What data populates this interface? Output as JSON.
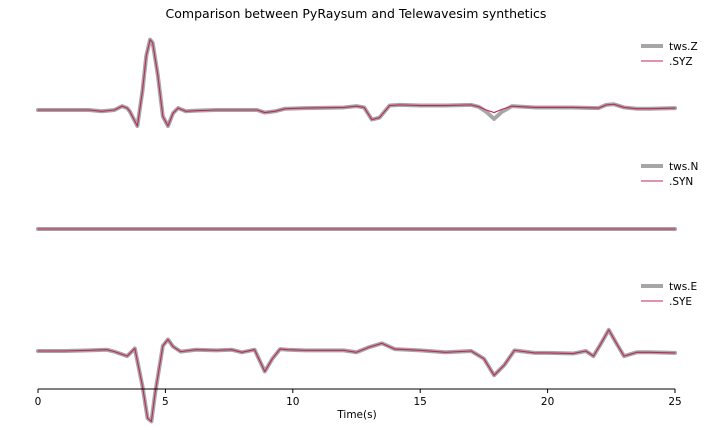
{
  "chart_data": {
    "type": "line",
    "title": "Comparison between PyRaysum and Telewavesim synthetics",
    "xlabel": "Time(s)",
    "xlim": [
      0,
      25
    ],
    "xticks": [
      0,
      5,
      10,
      15,
      20,
      25
    ],
    "grid": false,
    "legend_placement": "upper-right of each panel",
    "colors": {
      "reference": "#a6a6a6",
      "synthetic": "#c0285a"
    },
    "panels": [
      {
        "legend": [
          "tws.Z",
          ".SYZ"
        ],
        "ylim": [
          -1.2,
          1.2
        ],
        "series": [
          {
            "name": "tws.Z",
            "x": [
              0,
              1,
              2,
              2.5,
              3,
              3.3,
              3.5,
              3.6,
              3.9,
              4.1,
              4.25,
              4.4,
              4.5,
              4.7,
              4.9,
              5.1,
              5.3,
              5.5,
              5.8,
              6.2,
              7,
              8,
              8.6,
              8.9,
              9.3,
              9.7,
              10.5,
              12,
              12.5,
              12.8,
              13.1,
              13.4,
              13.8,
              14.2,
              15,
              16,
              17,
              17.3,
              17.6,
              17.9,
              18.2,
              18.6,
              19.5,
              20,
              21,
              22,
              22.3,
              22.6,
              23,
              23.5,
              24,
              25
            ],
            "y": [
              0,
              0,
              0,
              -0.02,
              0,
              0.06,
              0.03,
              -0.02,
              -0.25,
              0.3,
              0.85,
              1.1,
              1.05,
              0.55,
              -0.1,
              -0.25,
              -0.05,
              0.03,
              -0.02,
              -0.01,
              0,
              0,
              0,
              -0.04,
              -0.02,
              0.02,
              0.03,
              0.04,
              0.06,
              0.04,
              -0.15,
              -0.12,
              0.07,
              0.08,
              0.07,
              0.07,
              0.08,
              0.05,
              -0.03,
              -0.14,
              -0.03,
              0.06,
              0.04,
              0.04,
              0.04,
              0.03,
              0.08,
              0.09,
              0.04,
              0.02,
              0.02,
              0.03
            ]
          },
          {
            "name": ".SYZ",
            "x": [
              0,
              1,
              2,
              2.5,
              3,
              3.3,
              3.5,
              3.6,
              3.9,
              4.1,
              4.25,
              4.4,
              4.5,
              4.7,
              4.9,
              5.1,
              5.3,
              5.5,
              5.8,
              6.2,
              7,
              8,
              8.6,
              8.9,
              9.3,
              9.7,
              10.5,
              12,
              12.5,
              12.8,
              13.1,
              13.4,
              13.8,
              14.2,
              15,
              16,
              17,
              17.3,
              17.6,
              17.9,
              18.2,
              18.6,
              19.5,
              20,
              21,
              22,
              22.3,
              22.6,
              23,
              23.5,
              24,
              25
            ],
            "y": [
              0,
              0,
              0,
              -0.02,
              0,
              0.06,
              0.03,
              -0.02,
              -0.25,
              0.3,
              0.85,
              1.1,
              1.05,
              0.55,
              -0.1,
              -0.25,
              -0.05,
              0.03,
              -0.02,
              -0.01,
              0,
              0,
              0,
              -0.04,
              -0.02,
              0.02,
              0.03,
              0.04,
              0.06,
              0.04,
              -0.15,
              -0.12,
              0.07,
              0.08,
              0.07,
              0.07,
              0.08,
              0.05,
              0.0,
              -0.04,
              0.01,
              0.06,
              0.04,
              0.04,
              0.04,
              0.03,
              0.08,
              0.09,
              0.04,
              0.02,
              0.02,
              0.03
            ]
          }
        ]
      },
      {
        "legend": [
          "tws.N",
          ".SYN"
        ],
        "ylim": [
          -1.2,
          1.2
        ],
        "series": [
          {
            "name": "tws.N",
            "x": [
              0,
              25
            ],
            "y": [
              0,
              0
            ]
          },
          {
            "name": ".SYN",
            "x": [
              0,
              25
            ],
            "y": [
              0,
              0
            ]
          }
        ]
      },
      {
        "legend": [
          "tws.E",
          ".SYE"
        ],
        "ylim": [
          -1.2,
          1.2
        ],
        "series": [
          {
            "name": "tws.E",
            "x": [
              0,
              1,
              2,
              2.7,
              3,
              3.5,
              3.8,
              4.1,
              4.3,
              4.45,
              4.6,
              4.9,
              5.1,
              5.3,
              5.6,
              6.2,
              7,
              7.6,
              8,
              8.5,
              8.9,
              9.2,
              9.5,
              9.8,
              10.5,
              12,
              12.5,
              13,
              13.5,
              14,
              15,
              16,
              17,
              17.5,
              17.9,
              18.3,
              18.7,
              19.5,
              20,
              21,
              21.5,
              21.8,
              22.1,
              22.4,
              22.7,
              23,
              23.5,
              24,
              25
            ],
            "y": [
              0,
              0,
              0.01,
              0.02,
              -0.01,
              -0.08,
              0.04,
              -0.55,
              -1.05,
              -1.1,
              -0.65,
              0.08,
              0.18,
              0.07,
              -0.01,
              0.02,
              0.01,
              0.02,
              -0.02,
              0.02,
              -0.32,
              -0.12,
              0.03,
              0.02,
              0.01,
              0.01,
              -0.02,
              0.06,
              0.12,
              0.03,
              0.01,
              -0.02,
              0,
              -0.12,
              -0.38,
              -0.22,
              0.01,
              -0.03,
              -0.03,
              -0.04,
              0,
              -0.08,
              0.12,
              0.33,
              0.12,
              -0.08,
              -0.02,
              -0.02,
              -0.03
            ]
          },
          {
            "name": ".SYE",
            "x": [
              0,
              1,
              2,
              2.7,
              3,
              3.5,
              3.8,
              4.1,
              4.3,
              4.45,
              4.6,
              4.9,
              5.1,
              5.3,
              5.6,
              6.2,
              7,
              7.6,
              8,
              8.5,
              8.9,
              9.2,
              9.5,
              9.8,
              10.5,
              12,
              12.5,
              13,
              13.5,
              14,
              15,
              16,
              17,
              17.5,
              17.9,
              18.3,
              18.7,
              19.5,
              20,
              21,
              21.5,
              21.8,
              22.1,
              22.4,
              22.7,
              23,
              23.5,
              24,
              25
            ],
            "y": [
              0,
              0,
              0.01,
              0.02,
              -0.01,
              -0.08,
              0.04,
              -0.55,
              -1.05,
              -1.1,
              -0.65,
              0.08,
              0.18,
              0.07,
              -0.01,
              0.02,
              0.01,
              0.02,
              -0.02,
              0.02,
              -0.32,
              -0.12,
              0.03,
              0.02,
              0.01,
              0.01,
              -0.02,
              0.06,
              0.12,
              0.03,
              0.01,
              -0.02,
              0,
              -0.12,
              -0.38,
              -0.22,
              0.01,
              -0.03,
              -0.03,
              -0.04,
              0,
              -0.08,
              0.12,
              0.33,
              0.12,
              -0.08,
              -0.02,
              -0.02,
              -0.03
            ]
          }
        ]
      }
    ]
  }
}
